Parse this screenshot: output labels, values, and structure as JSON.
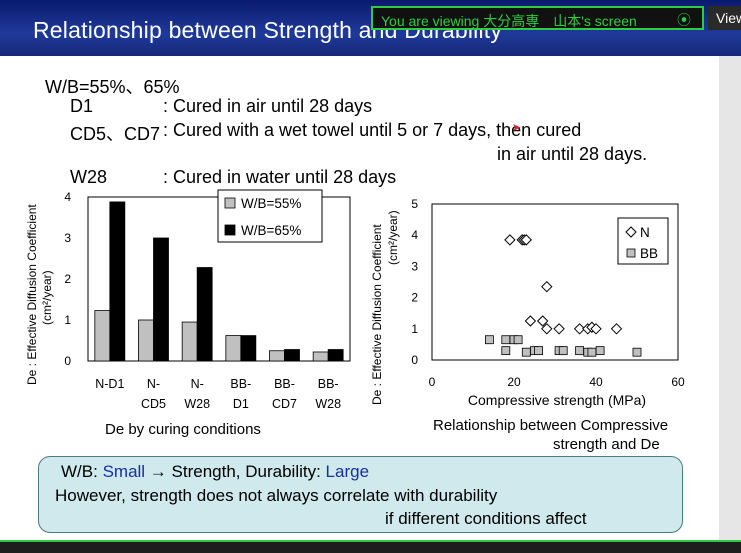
{
  "slide": {
    "title": "Relationship between Strength and Durability",
    "lines": {
      "wb": "W/B=55%、65%",
      "d1_code": "D1",
      "d1_desc": ": Cured in air until 28 days",
      "cd_code": "CD5、CD7",
      "cd_desc": ": Cured with a wet towel until 5 or 7 days, then cured",
      "cd_desc2": "in air until 28 days.",
      "w28_code": "W28",
      "w28_desc": ": Cured in water until 28 days"
    }
  },
  "zoom": {
    "banner": "You are viewing 大分高専　山本's screen",
    "view_tab": "View"
  },
  "summary": {
    "line1_prefix": "W/B: ",
    "line1_small": "Small",
    "line1_mid": " → Strength, Durability: ",
    "line1_large": "Large",
    "line2": "However, strength does not always correlate with durability",
    "line3": "if different conditions affect"
  },
  "chart_data": [
    {
      "type": "bar",
      "ylabel_line1": "De : Effective Diffusion Coefficient",
      "ylabel_line2": "(cm²/year)",
      "caption": "De by curing conditions",
      "categories": [
        [
          "N-D1",
          ""
        ],
        [
          "N-",
          "CD5"
        ],
        [
          "N-",
          "W28"
        ],
        [
          "BB-",
          "D1"
        ],
        [
          "BB-",
          "CD7"
        ],
        [
          "BB-",
          "W28"
        ]
      ],
      "ylim": [
        0,
        4
      ],
      "yticks": [
        0,
        1,
        2,
        3,
        4
      ],
      "series": [
        {
          "name": "W/B=55%",
          "color": "#c0c0c0",
          "values": [
            1.23,
            1.0,
            0.95,
            0.62,
            0.25,
            0.22
          ]
        },
        {
          "name": "W/B=65%",
          "color": "#000000",
          "values": [
            3.88,
            3.0,
            2.28,
            0.62,
            0.28,
            0.28
          ]
        }
      ],
      "legend": "top-right"
    },
    {
      "type": "scatter",
      "ylabel_line1": "De : Effective Diffusion Coefficient",
      "ylabel_line2": "(cm²/year)",
      "xlabel": "Compressive strength (MPa)",
      "caption_line1": "Relationship between Compressive",
      "caption_line2": "strength and De",
      "xlim": [
        0,
        60
      ],
      "ylim": [
        0,
        5
      ],
      "xticks": [
        0,
        20,
        40,
        60
      ],
      "yticks": [
        0,
        1,
        2,
        3,
        4,
        5
      ],
      "series": [
        {
          "name": "N",
          "marker": "diamond",
          "points": [
            [
              19,
              3.85
            ],
            [
              22,
              3.85
            ],
            [
              22.5,
              3.85
            ],
            [
              23,
              3.85
            ],
            [
              28,
              2.35
            ],
            [
              24,
              1.25
            ],
            [
              27,
              1.25
            ],
            [
              28,
              1.0
            ],
            [
              31,
              1.0
            ],
            [
              36,
              1.0
            ],
            [
              38,
              1.0
            ],
            [
              39,
              1.05
            ],
            [
              40,
              1.0
            ],
            [
              45,
              1.0
            ]
          ]
        },
        {
          "name": "BB",
          "marker": "square",
          "points": [
            [
              14,
              0.65
            ],
            [
              18,
              0.65
            ],
            [
              20,
              0.65
            ],
            [
              21,
              0.65
            ],
            [
              18,
              0.3
            ],
            [
              23,
              0.25
            ],
            [
              25,
              0.3
            ],
            [
              26,
              0.3
            ],
            [
              31,
              0.3
            ],
            [
              32,
              0.3
            ],
            [
              36,
              0.3
            ],
            [
              38,
              0.25
            ],
            [
              39,
              0.25
            ],
            [
              41,
              0.3
            ],
            [
              50,
              0.25
            ]
          ]
        }
      ],
      "legend": "top-right"
    }
  ]
}
